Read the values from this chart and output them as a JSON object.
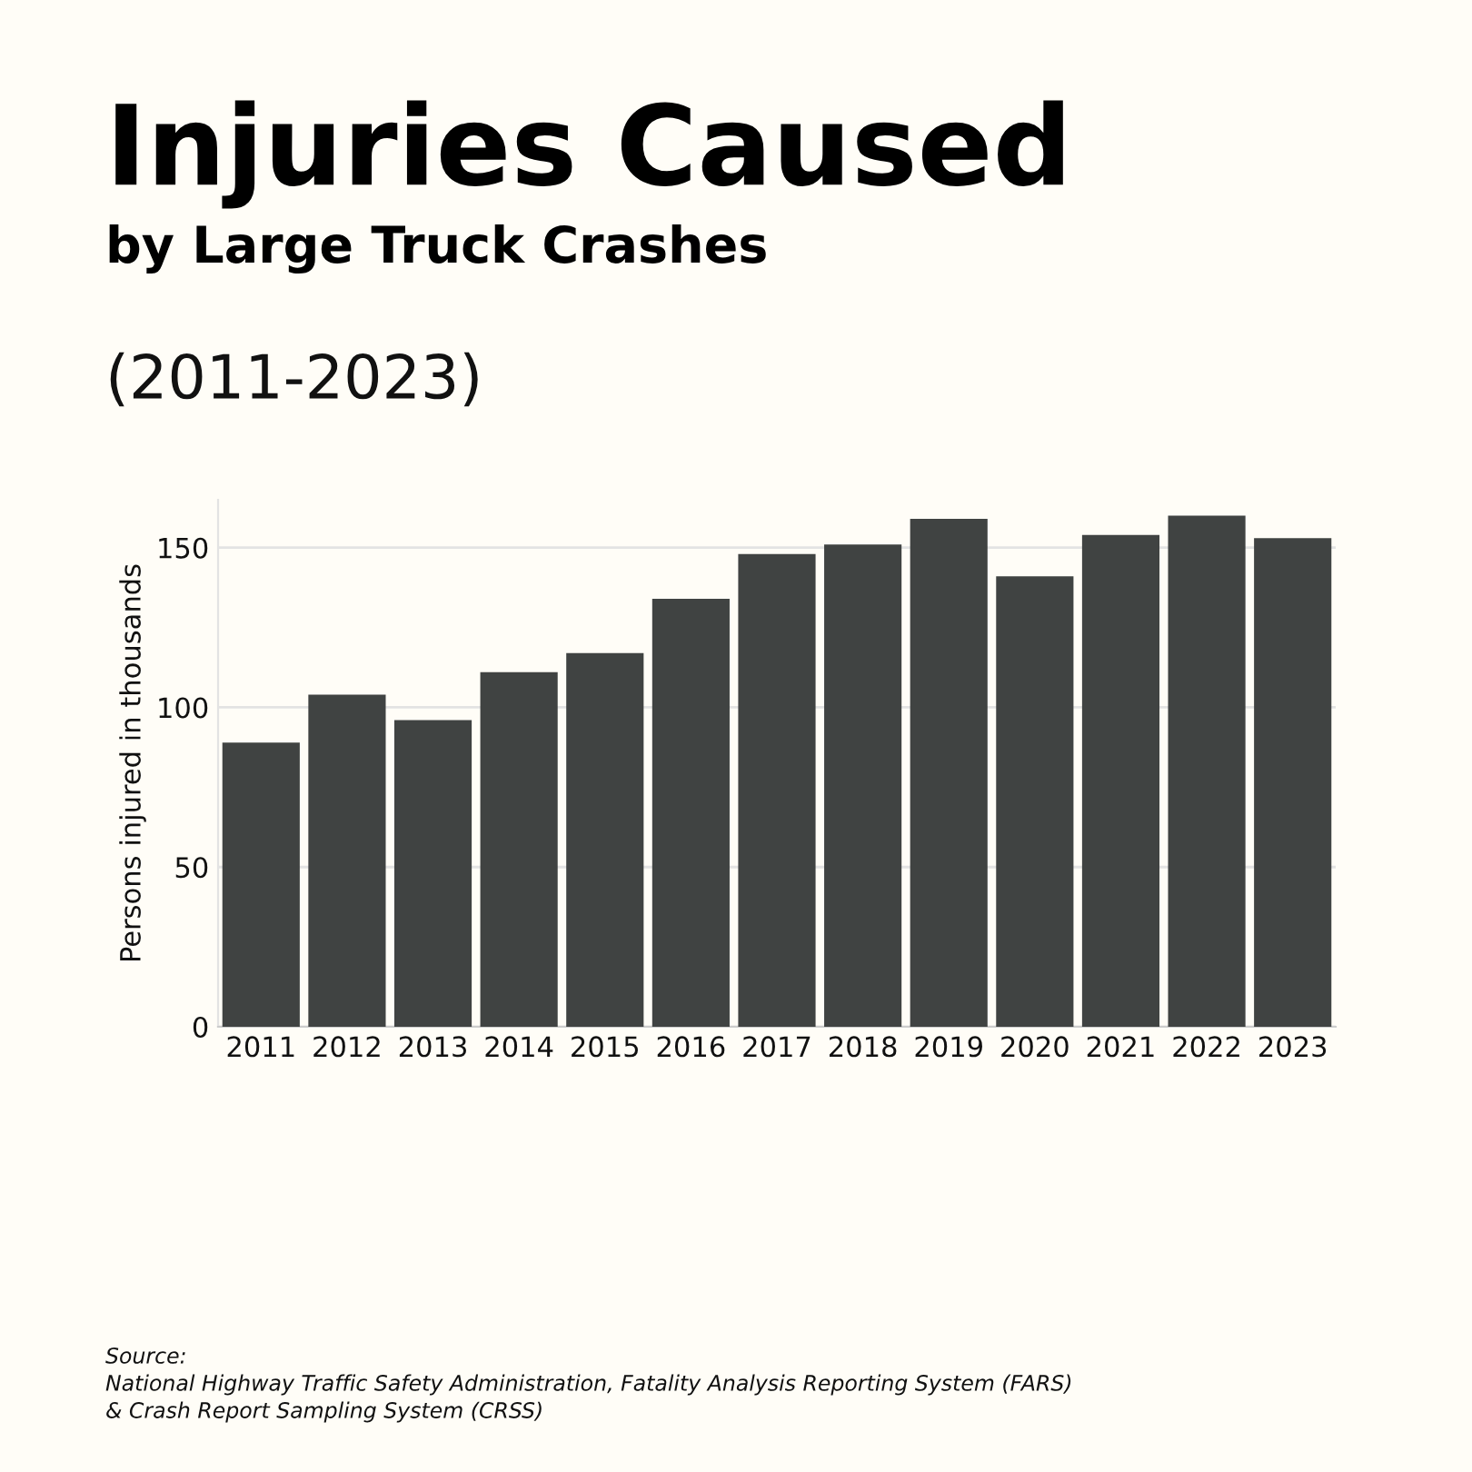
{
  "chart_data": {
    "type": "bar",
    "title": "Injuries Caused",
    "subtitle": "by Large Truck Crashes",
    "ylabel": "Persons injured in thousands",
    "categories": [
      "2011",
      "2012",
      "2013",
      "2014",
      "2015",
      "2016",
      "2017",
      "2018",
      "2019",
      "2020",
      "2021",
      "2022",
      "2023"
    ],
    "values": [
      89,
      104,
      96,
      111,
      117,
      134,
      148,
      151,
      159,
      141,
      154,
      160,
      153
    ],
    "color": "#404342",
    "ylim": [
      0,
      165
    ],
    "yticks": [
      0,
      50,
      100,
      150
    ],
    "grid": "y",
    "annotations": [
      "(2011-2023)",
      "Source:\nNational Highway Traffic Safety Administration, Fatality Analysis Reporting System (FARS)\n& Crash Report Sampling System (CRSS)"
    ]
  }
}
